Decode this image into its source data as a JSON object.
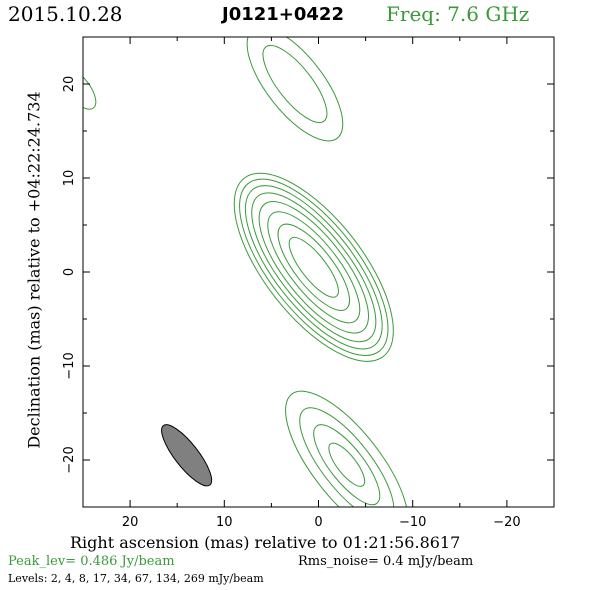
{
  "header": {
    "date": "2015.10.28",
    "source": "J0121+0422",
    "frequency": "Freq: 7.6 GHz"
  },
  "axes": {
    "xlabel": "Right ascension (mas) relative to 01:21:56.8617",
    "ylabel": "Declination (mas) relative to +04:22:24.734"
  },
  "footer": {
    "peak": "Peak_lev=  0.486 Jy/beam",
    "rms": "Rms_noise=  0.4 mJy/beam",
    "levels": "Levels:   2,    4,    8,   17,   34,   67,  134,  269  mJy/beam"
  },
  "colors": {
    "contour": "#3a9a3a",
    "beam_fill": "#808080",
    "accent_text": "#3a9a3a"
  },
  "chart_data": {
    "type": "contour",
    "title": "J0121+0422",
    "xlabel": "Right ascension (mas) relative to 01:21:56.8617",
    "ylabel": "Declination (mas) relative to +04:22:24.734",
    "xlim": [
      25,
      -25
    ],
    "ylim": [
      -25,
      25
    ],
    "x_ticks": [
      20,
      10,
      0,
      -10,
      -20
    ],
    "x_tick_labels": [
      "20",
      "10",
      "0",
      "−10",
      "−20"
    ],
    "y_ticks": [
      20,
      10,
      0,
      -10,
      -20
    ],
    "y_tick_labels": [
      "20",
      "10",
      "0",
      "−10",
      "−20"
    ],
    "contour_levels_mJy_per_beam": [
      2,
      4,
      8,
      17,
      34,
      67,
      134,
      269
    ],
    "components": [
      {
        "label": "core",
        "x": 0.5,
        "y": 0.5,
        "pa_deg": -38,
        "rings": [
          {
            "level": 2,
            "a": 12.0,
            "b": 5.2
          },
          {
            "level": 4,
            "a": 11.3,
            "b": 4.7
          },
          {
            "level": 8,
            "a": 10.5,
            "b": 4.2
          },
          {
            "level": 17,
            "a": 9.6,
            "b": 3.7
          },
          {
            "level": 34,
            "a": 8.5,
            "b": 3.2
          },
          {
            "level": 67,
            "a": 7.2,
            "b": 2.6
          },
          {
            "level": 134,
            "a": 5.6,
            "b": 2.0
          },
          {
            "level": 269,
            "a": 3.9,
            "b": 1.3
          }
        ]
      },
      {
        "label": "northern component",
        "x": 2.5,
        "y": 20.0,
        "pa_deg": -38,
        "rings": [
          {
            "level": 2,
            "a": 7.3,
            "b": 3.0
          },
          {
            "level": 4,
            "a": 5.0,
            "b": 1.8
          }
        ]
      },
      {
        "label": "southern component",
        "x": -3.0,
        "y": -20.5,
        "pa_deg": -38,
        "rings": [
          {
            "level": 2,
            "a": 9.5,
            "b": 3.6
          },
          {
            "level": 4,
            "a": 7.4,
            "b": 2.6
          },
          {
            "level": 8,
            "a": 5.2,
            "b": 1.8
          },
          {
            "level": 17,
            "a": 2.8,
            "b": 1.0
          }
        ]
      },
      {
        "label": "edge component",
        "x": 25.5,
        "y": 19.5,
        "pa_deg": -38,
        "rings": [
          {
            "level": 2,
            "a": 2.6,
            "b": 1.2
          }
        ]
      }
    ],
    "beam": {
      "x": 14.0,
      "y": -19.5,
      "major_mas": 8.0,
      "minor_mas": 2.5,
      "pa_deg": -38
    }
  }
}
